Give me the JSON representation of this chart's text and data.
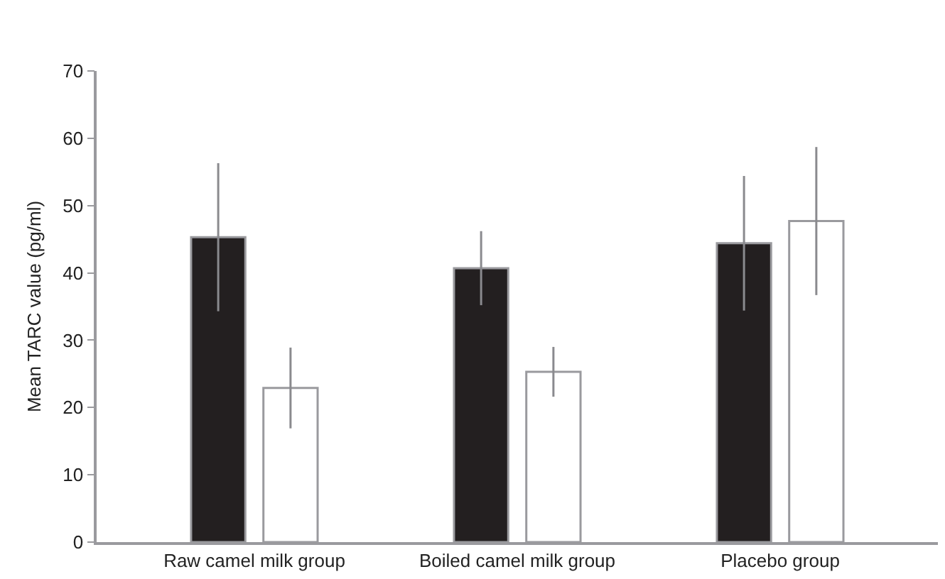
{
  "chart_data": {
    "type": "bar",
    "ylabel": "Mean TARC value (pg/ml)",
    "categories": [
      "Raw camel milk group",
      "Boiled camel milk group",
      "Placebo group"
    ],
    "series": [
      {
        "color": "#231f20",
        "values": [
          45.3,
          40.7,
          44.4
        ],
        "errors": [
          11,
          5.5,
          10
        ]
      },
      {
        "color": "#ffffff",
        "values": [
          22.9,
          25.3,
          47.7
        ],
        "errors": [
          6,
          3.7,
          11
        ]
      }
    ],
    "ylim": [
      0,
      70
    ],
    "yticks": [
      0,
      10,
      20,
      30,
      40,
      50,
      60,
      70
    ],
    "grid": false,
    "legend": false
  }
}
